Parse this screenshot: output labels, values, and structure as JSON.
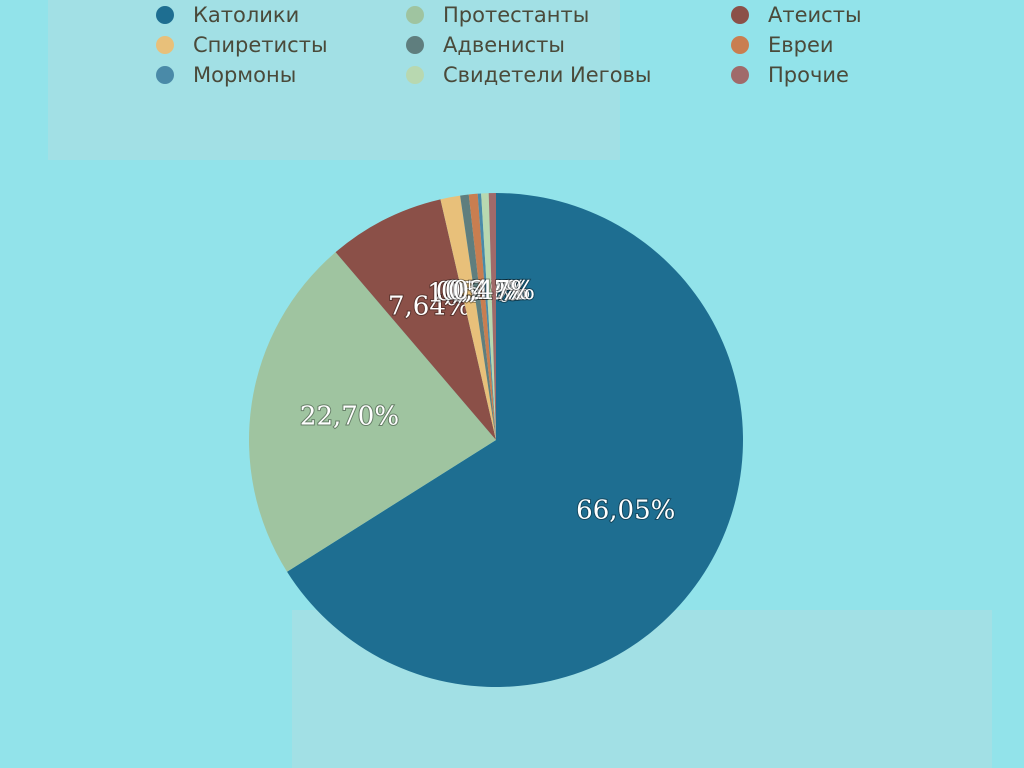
{
  "chart_data": {
    "type": "pie",
    "categories": [
      "Католики",
      "Протестанты",
      "Атеисты",
      "Спиретисты",
      "Адвенисты",
      "Евреи",
      "Мормоны",
      "Свидетели Иеговы",
      "Прочие"
    ],
    "values": [
      66.05,
      22.7,
      7.64,
      1.29,
      0.56,
      0.58,
      0.22,
      0.49,
      0.47
    ],
    "value_labels": [
      "66,05%",
      "22,70%",
      "7,64%",
      "1,29%",
      "0,56%",
      "0,58%",
      "0,22%",
      "0,49%",
      "0,47%"
    ],
    "colors": [
      "#1e6e91",
      "#9fc4a0",
      "#8b5048",
      "#e8c07a",
      "#5f7e7e",
      "#c97e50",
      "#4a8aa8",
      "#b8d8b0",
      "#a06a6a"
    ]
  }
}
